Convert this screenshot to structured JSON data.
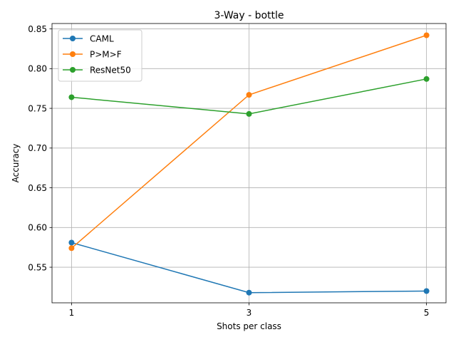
{
  "chart_data": {
    "type": "line",
    "title": "3-Way - bottle",
    "xlabel": "Shots per class",
    "ylabel": "Accuracy",
    "x": [
      1,
      3,
      5
    ],
    "x_ticks": [
      "1",
      "3",
      "5"
    ],
    "y_ticks": [
      "0.55",
      "0.60",
      "0.65",
      "0.70",
      "0.75",
      "0.80",
      "0.85"
    ],
    "xlim": [
      0.78,
      5.22
    ],
    "ylim": [
      0.5052,
      0.8568
    ],
    "grid": true,
    "legend_position": "upper-left",
    "series": [
      {
        "name": "CAML",
        "color": "#1f77b4",
        "values": [
          0.581,
          0.518,
          0.52
        ]
      },
      {
        "name": "P>M>F",
        "color": "#ff7f0e",
        "values": [
          0.574,
          0.767,
          0.842
        ]
      },
      {
        "name": "ResNet50",
        "color": "#2ca02c",
        "values": [
          0.764,
          0.743,
          0.787
        ]
      }
    ]
  }
}
